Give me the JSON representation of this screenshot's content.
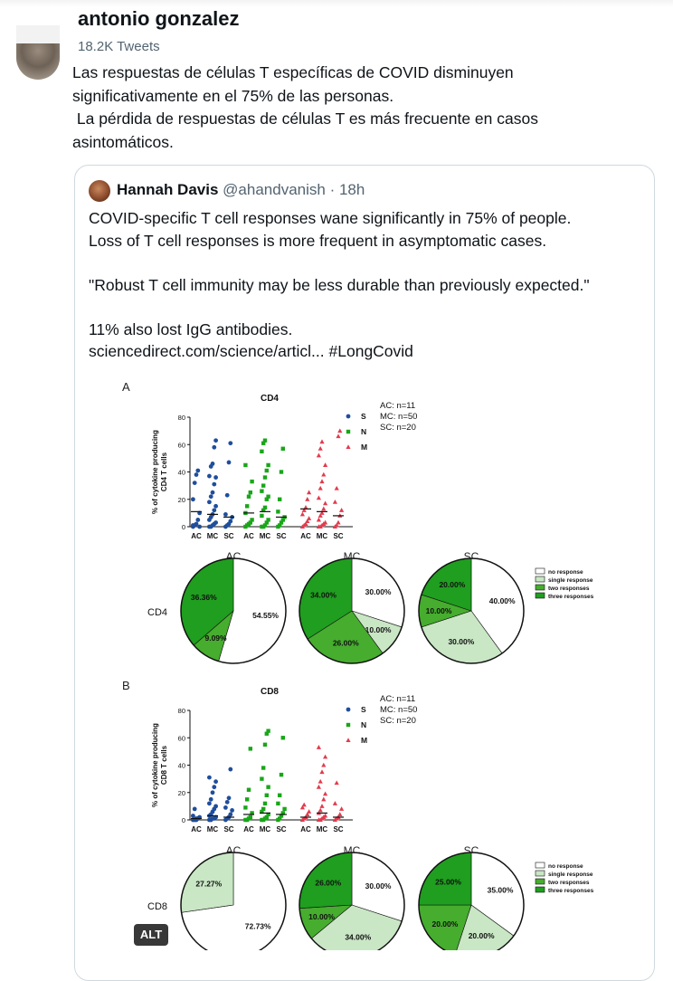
{
  "header": {
    "name": "antonio gonzalez",
    "tweet_count": "18.2K Tweets"
  },
  "tweet": {
    "text": "Las respuestas de células T específicas de COVID disminuyen\nsignificativamente en el 75% de las personas.\n La pérdida de respuestas de células T es más frecuente en casos\nasintomáticos."
  },
  "quote": {
    "name": "Hannah Davis",
    "handle": "@ahandvanish",
    "time": "· 18h",
    "text": "COVID-specific T cell responses wane significantly in 75% of people.\nLoss of T cell responses is more frequent in asymptomatic cases.\n\n\"Robust T cell immunity may be less durable than previously expected.\"\n\n11% also lost IgG antibodies.\nsciencedirect.com/science/articl... #LongCovid"
  },
  "alt_badge": "ALT",
  "colors": {
    "S": "#1f4e9c",
    "N": "#19a619",
    "M": "#e23b4e",
    "dark_green": "#1f9e1f",
    "mid_green": "#46ad2e",
    "light_green": "#c9e6c5"
  },
  "chart_data": [
    {
      "type": "scatter",
      "panel": "A",
      "title": "CD4",
      "ylabel": "% of cytokine producing\nCD4 T cells",
      "ylim": [
        0,
        80
      ],
      "yticks": [
        0,
        20,
        40,
        60,
        80
      ],
      "groups": [
        "AC",
        "MC",
        "SC"
      ],
      "legend": [
        "S",
        "N",
        "M"
      ],
      "annotations": [
        "AC: n=11",
        "MC: n=50",
        "SC: n=20"
      ],
      "series": [
        {
          "name": "S",
          "AC": [
            0,
            1,
            2,
            5,
            10,
            20,
            32,
            38,
            41,
            0,
            1
          ],
          "MC": [
            0,
            0,
            1,
            2,
            3,
            5,
            7,
            9,
            12,
            15,
            18,
            22,
            25,
            31,
            36,
            37,
            44,
            46,
            58,
            63
          ],
          "SC": [
            0,
            1,
            2,
            4,
            7,
            9,
            23,
            47,
            61
          ],
          "medians": [
            11,
            9,
            7
          ]
        },
        {
          "name": "N",
          "AC": [
            0,
            1,
            2,
            3,
            5,
            10,
            15,
            22,
            25,
            33,
            45
          ],
          "MC": [
            0,
            0,
            1,
            3,
            5,
            8,
            12,
            14,
            20,
            22,
            26,
            30,
            36,
            41,
            45,
            55,
            61,
            63
          ],
          "SC": [
            0,
            1,
            3,
            5,
            7,
            11,
            20,
            40,
            57
          ],
          "medians": [
            10,
            11,
            7
          ]
        },
        {
          "name": "M",
          "AC": [
            0,
            1,
            2,
            4,
            6,
            9,
            12,
            14,
            20,
            25
          ],
          "MC": [
            0,
            0,
            1,
            2,
            3,
            5,
            8,
            10,
            13,
            17,
            21,
            28,
            33,
            38,
            45,
            52,
            57,
            62
          ],
          "SC": [
            0,
            1,
            3,
            8,
            12,
            18,
            28,
            66,
            70
          ],
          "medians": [
            13,
            11,
            8
          ]
        }
      ]
    },
    {
      "type": "pie",
      "row": "CD4",
      "pies": [
        {
          "title": "AC",
          "slices": [
            {
              "name": "no response",
              "value": 54.55,
              "label": "54.55%"
            },
            {
              "name": "two responses",
              "value": 9.09,
              "label": "9.09%"
            },
            {
              "name": "three responses",
              "value": 36.36,
              "label": "36.36%"
            }
          ]
        },
        {
          "title": "MC",
          "slices": [
            {
              "name": "no response",
              "value": 30.0,
              "label": "30.00%"
            },
            {
              "name": "single response",
              "value": 10.0,
              "label": "10.00%"
            },
            {
              "name": "two responses",
              "value": 26.0,
              "label": "26.00%"
            },
            {
              "name": "three responses",
              "value": 34.0,
              "label": "34.00%"
            }
          ]
        },
        {
          "title": "SC",
          "slices": [
            {
              "name": "no response",
              "value": 40.0,
              "label": "40.00%"
            },
            {
              "name": "single response",
              "value": 30.0,
              "label": "30.00%"
            },
            {
              "name": "two responses",
              "value": 10.0,
              "label": "10.00%"
            },
            {
              "name": "three responses",
              "value": 20.0,
              "label": "20.00%"
            }
          ]
        }
      ],
      "legend": [
        "no response",
        "single response",
        "two responses",
        "three responses"
      ]
    },
    {
      "type": "scatter",
      "panel": "B",
      "title": "CD8",
      "ylabel": "% of cytokine producing\nCD8 T cells",
      "ylim": [
        0,
        80
      ],
      "yticks": [
        0,
        20,
        40,
        60,
        80
      ],
      "groups": [
        "AC",
        "MC",
        "SC"
      ],
      "legend": [
        "S",
        "N",
        "M"
      ],
      "annotations": [
        "AC: n=11",
        "MC: n=50",
        "SC: n=20"
      ],
      "series": [
        {
          "name": "S",
          "AC": [
            0,
            0,
            1,
            1,
            2,
            3,
            8,
            0,
            1
          ],
          "MC": [
            0,
            0,
            1,
            1,
            2,
            3,
            4,
            6,
            8,
            10,
            12,
            15,
            20,
            24,
            28,
            31
          ],
          "SC": [
            0,
            1,
            2,
            4,
            7,
            9,
            13,
            16,
            37
          ],
          "medians": [
            1,
            3,
            2
          ]
        },
        {
          "name": "N",
          "AC": [
            0,
            0,
            1,
            2,
            5,
            9,
            15,
            22,
            52
          ],
          "MC": [
            0,
            0,
            1,
            2,
            4,
            6,
            8,
            12,
            18,
            24,
            30,
            38,
            55,
            63,
            65
          ],
          "SC": [
            0,
            1,
            3,
            5,
            8,
            12,
            18,
            33,
            60
          ],
          "medians": [
            4,
            5,
            4
          ]
        },
        {
          "name": "M",
          "AC": [
            0,
            1,
            2,
            4,
            6,
            9,
            11
          ],
          "MC": [
            0,
            0,
            1,
            2,
            3,
            5,
            7,
            10,
            15,
            19,
            24,
            28,
            35,
            40,
            46,
            53
          ],
          "SC": [
            0,
            1,
            2,
            4,
            8,
            12,
            27
          ],
          "medians": [
            2,
            5,
            2
          ]
        }
      ]
    },
    {
      "type": "pie",
      "row": "CD8",
      "pies": [
        {
          "title": "AC",
          "slices": [
            {
              "name": "no response",
              "value": 72.73,
              "label": "72.73%"
            },
            {
              "name": "single response",
              "value": 27.27,
              "label": "27.27%"
            }
          ]
        },
        {
          "title": "MC",
          "slices": [
            {
              "name": "no response",
              "value": 30.0,
              "label": "30.00%"
            },
            {
              "name": "single response",
              "value": 34.0,
              "label": "34.00%"
            },
            {
              "name": "two responses",
              "value": 10.0,
              "label": "10.00%"
            },
            {
              "name": "three responses",
              "value": 26.0,
              "label": "26.00%"
            }
          ]
        },
        {
          "title": "SC",
          "slices": [
            {
              "name": "no response",
              "value": 35.0,
              "label": "35.00%"
            },
            {
              "name": "single response",
              "value": 20.0,
              "label": "20.00%"
            },
            {
              "name": "two responses",
              "value": 20.0,
              "label": "20.00%"
            },
            {
              "name": "three responses",
              "value": 25.0,
              "label": "25.00%"
            }
          ]
        }
      ],
      "legend": [
        "no response",
        "single response",
        "two responses",
        "three responses"
      ]
    }
  ]
}
